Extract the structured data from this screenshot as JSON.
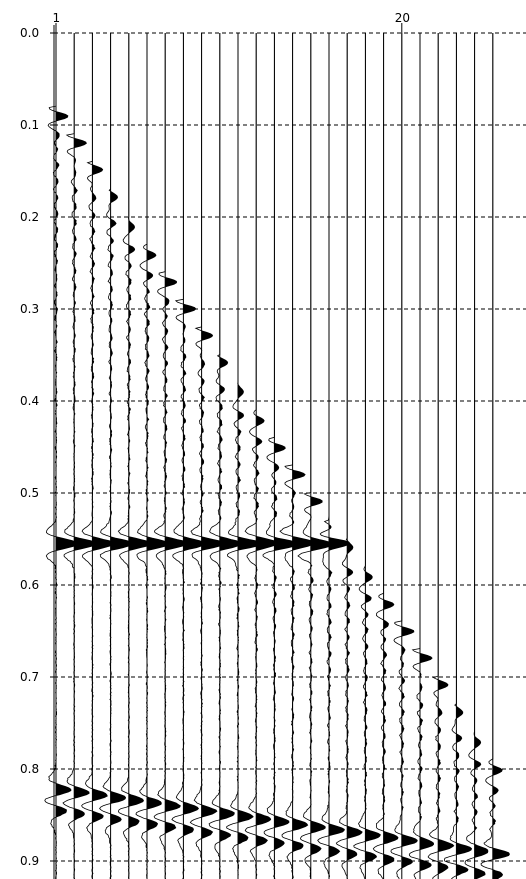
{
  "chart_data": {
    "type": "seismic_wiggle_section",
    "trace_count": 25,
    "x_tick_labels": [
      {
        "trace": 1,
        "label": "1"
      },
      {
        "trace": 20,
        "label": "20"
      }
    ],
    "y_axis": {
      "range": [
        0.0,
        0.95
      ],
      "ticks": [
        0.0,
        0.1,
        0.2,
        0.3,
        0.4,
        0.5,
        0.6,
        0.7,
        0.8,
        0.9
      ],
      "tick_labels": [
        "0.0",
        "0.1",
        "0.2",
        "0.3",
        "0.4",
        "0.5",
        "0.6",
        "0.7",
        "0.8",
        "0.9"
      ]
    },
    "grid": {
      "horizontal": "dashed",
      "vertical": "trace baselines"
    },
    "fill": "positive lobes black",
    "first_break_times": [
      0.09,
      0.12,
      0.15,
      0.18,
      0.21,
      0.24,
      0.27,
      0.3,
      0.33,
      0.36,
      0.39,
      0.42,
      0.45,
      0.48,
      0.51,
      0.54,
      0.56,
      0.59,
      0.62,
      0.65,
      0.68,
      0.71,
      0.74,
      0.77,
      0.8
    ],
    "reflection_1": {
      "trace_start": 1,
      "trace_end": 16,
      "time": 0.555
    },
    "reflection_2": {
      "trace_start": 1,
      "trace_end": 25,
      "time_start": 0.835,
      "time_end": 0.905
    }
  }
}
